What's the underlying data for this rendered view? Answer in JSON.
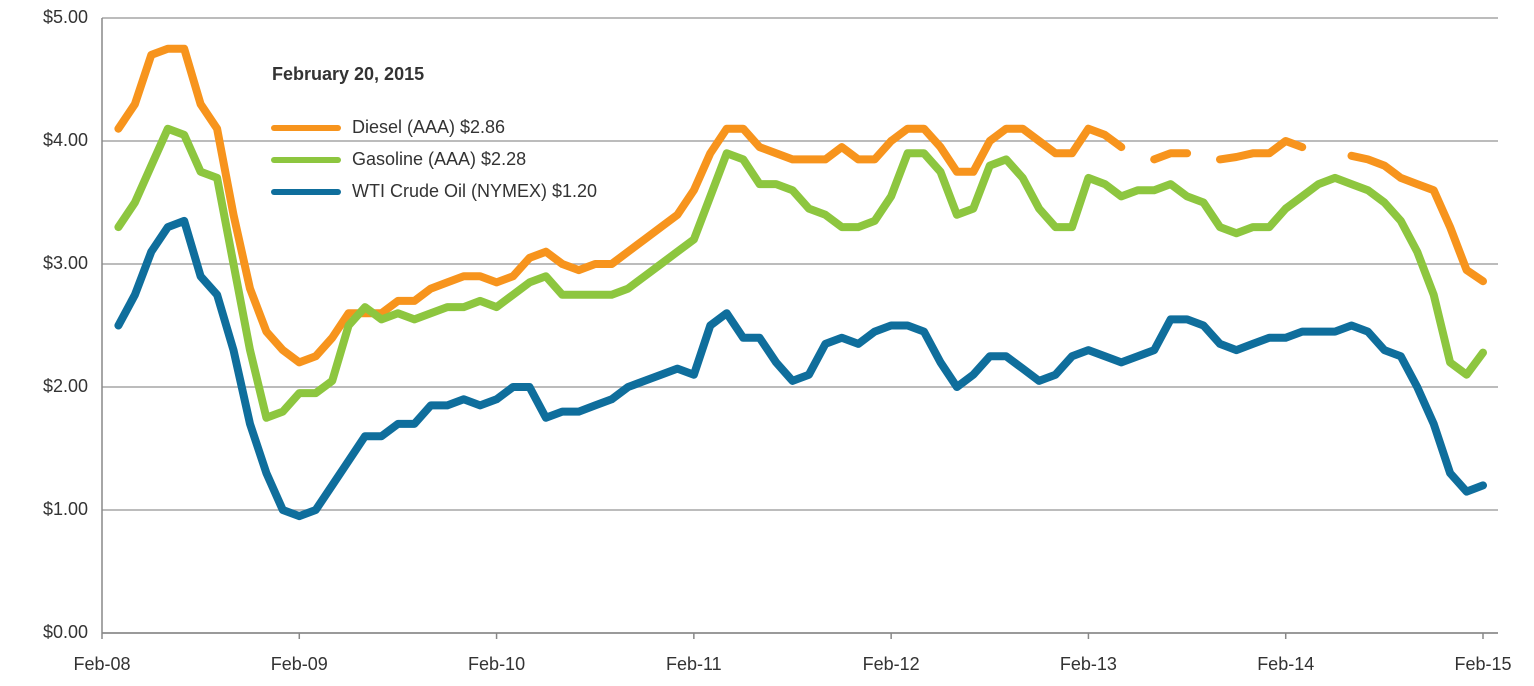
{
  "chart_data": {
    "type": "line",
    "x": [
      "Feb-08",
      "Mar-08",
      "Apr-08",
      "May-08",
      "Jun-08",
      "Jul-08",
      "Aug-08",
      "Sep-08",
      "Oct-08",
      "Nov-08",
      "Dec-08",
      "Jan-09",
      "Feb-09",
      "Mar-09",
      "Apr-09",
      "May-09",
      "Jun-09",
      "Jul-09",
      "Aug-09",
      "Sep-09",
      "Oct-09",
      "Nov-09",
      "Dec-09",
      "Jan-10",
      "Feb-10",
      "Mar-10",
      "Apr-10",
      "May-10",
      "Jun-10",
      "Jul-10",
      "Aug-10",
      "Sep-10",
      "Oct-10",
      "Nov-10",
      "Dec-10",
      "Jan-11",
      "Feb-11",
      "Mar-11",
      "Apr-11",
      "May-11",
      "Jun-11",
      "Jul-11",
      "Aug-11",
      "Sep-11",
      "Oct-11",
      "Nov-11",
      "Dec-11",
      "Jan-12",
      "Feb-12",
      "Mar-12",
      "Apr-12",
      "May-12",
      "Jun-12",
      "Jul-12",
      "Aug-12",
      "Sep-12",
      "Oct-12",
      "Nov-12",
      "Dec-12",
      "Jan-13",
      "Feb-13",
      "Mar-13",
      "Apr-13",
      "May-13",
      "Jun-13",
      "Jul-13",
      "Aug-13",
      "Sep-13",
      "Oct-13",
      "Nov-13",
      "Dec-13",
      "Jan-14",
      "Feb-14",
      "Mar-14",
      "Apr-14",
      "May-14",
      "Jun-14",
      "Jul-14",
      "Aug-14",
      "Sep-14",
      "Oct-14",
      "Nov-14",
      "Dec-14",
      "Jan-15",
      "Feb-15"
    ],
    "xticks": [
      "Feb-08",
      "Feb-09",
      "Feb-10",
      "Feb-11",
      "Feb-12",
      "Feb-13",
      "Feb-14",
      "Feb-15"
    ],
    "legend_title": "February 20, 2015",
    "series": [
      {
        "name": "Diesel (AAA) $2.86",
        "color": "#f7941d",
        "values": [
          null,
          4.1,
          4.3,
          4.7,
          4.75,
          4.75,
          4.3,
          4.1,
          3.4,
          2.8,
          2.45,
          2.3,
          2.2,
          2.25,
          2.4,
          2.6,
          2.6,
          2.6,
          2.7,
          2.7,
          2.8,
          2.85,
          2.9,
          2.9,
          2.85,
          2.9,
          3.05,
          3.1,
          3.0,
          2.95,
          3.0,
          3.0,
          3.1,
          3.2,
          3.3,
          3.4,
          3.6,
          3.9,
          4.1,
          4.1,
          3.95,
          3.9,
          3.85,
          3.85,
          3.85,
          3.95,
          3.85,
          3.85,
          4.0,
          4.1,
          4.1,
          3.95,
          3.75,
          3.75,
          4.0,
          4.1,
          4.1,
          4.0,
          3.9,
          3.9,
          4.1,
          4.05,
          3.95,
          null,
          3.85,
          3.9,
          3.9,
          null,
          3.85,
          3.87,
          3.9,
          3.9,
          4.0,
          3.95,
          null,
          null,
          3.88,
          3.85,
          3.8,
          3.7,
          3.65,
          3.6,
          3.3,
          2.95,
          2.86
        ]
      },
      {
        "name": "Gasoline (AAA) $2.28",
        "color": "#8dc63f",
        "values": [
          null,
          3.3,
          3.5,
          3.8,
          4.1,
          4.05,
          3.75,
          3.7,
          3.0,
          2.3,
          1.75,
          1.8,
          1.95,
          1.95,
          2.05,
          2.5,
          2.65,
          2.55,
          2.6,
          2.55,
          2.6,
          2.65,
          2.65,
          2.7,
          2.65,
          2.75,
          2.85,
          2.9,
          2.75,
          2.75,
          2.75,
          2.75,
          2.8,
          2.9,
          3.0,
          3.1,
          3.2,
          3.55,
          3.9,
          3.85,
          3.65,
          3.65,
          3.6,
          3.45,
          3.4,
          3.3,
          3.3,
          3.35,
          3.55,
          3.9,
          3.9,
          3.75,
          3.4,
          3.45,
          3.8,
          3.85,
          3.7,
          3.45,
          3.3,
          3.3,
          3.7,
          3.65,
          3.55,
          3.6,
          3.6,
          3.65,
          3.55,
          3.5,
          3.3,
          3.25,
          3.3,
          3.3,
          3.45,
          3.55,
          3.65,
          3.7,
          3.65,
          3.6,
          3.5,
          3.35,
          3.1,
          2.75,
          2.2,
          2.1,
          2.28
        ]
      },
      {
        "name": "WTI Crude Oil (NYMEX) $1.20",
        "color": "#0f6e9c",
        "values": [
          null,
          2.5,
          2.75,
          3.1,
          3.3,
          3.35,
          2.9,
          2.75,
          2.3,
          1.7,
          1.3,
          1.0,
          0.95,
          1.0,
          1.2,
          1.4,
          1.6,
          1.6,
          1.7,
          1.7,
          1.85,
          1.85,
          1.9,
          1.85,
          1.9,
          2.0,
          2.0,
          1.75,
          1.8,
          1.8,
          1.85,
          1.9,
          2.0,
          2.05,
          2.1,
          2.15,
          2.1,
          2.5,
          2.6,
          2.4,
          2.4,
          2.2,
          2.05,
          2.1,
          2.35,
          2.4,
          2.35,
          2.45,
          2.5,
          2.5,
          2.45,
          2.2,
          2.0,
          2.1,
          2.25,
          2.25,
          2.15,
          2.05,
          2.1,
          2.25,
          2.3,
          2.25,
          2.2,
          2.25,
          2.3,
          2.55,
          2.55,
          2.5,
          2.35,
          2.3,
          2.35,
          2.4,
          2.4,
          2.45,
          2.45,
          2.45,
          2.5,
          2.45,
          2.3,
          2.25,
          2.0,
          1.7,
          1.3,
          1.15,
          1.2
        ]
      }
    ],
    "ylim": [
      0,
      5
    ],
    "yticks": [
      {
        "value": 0,
        "label": "$0.00"
      },
      {
        "value": 1,
        "label": "$1.00"
      },
      {
        "value": 2,
        "label": "$2.00"
      },
      {
        "value": 3,
        "label": "$3.00"
      },
      {
        "value": 4,
        "label": "$4.00"
      },
      {
        "value": 5,
        "label": "$5.00"
      }
    ],
    "grid": true
  }
}
